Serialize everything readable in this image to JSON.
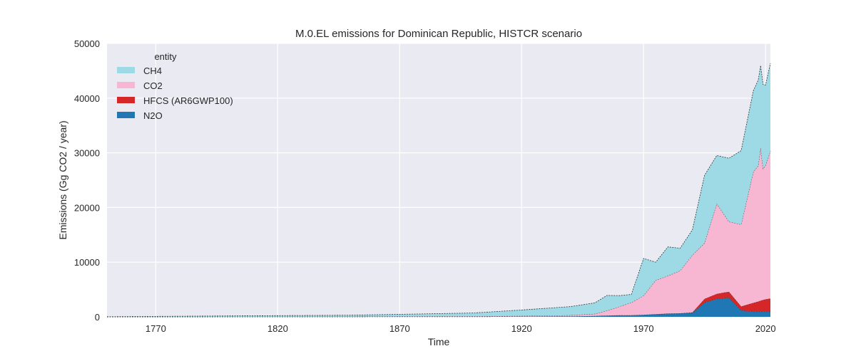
{
  "chart_data": {
    "type": "area",
    "stacked": true,
    "title": "M.0.EL emissions for Dominican Republic, HISTCR scenario",
    "xlabel": "Time",
    "ylabel": "Emissions (Gg CO2 / year)",
    "xlim": [
      1750,
      2022
    ],
    "ylim": [
      0,
      50000
    ],
    "xticks": [
      1770,
      1820,
      1870,
      1920,
      1970,
      2020
    ],
    "yticks": [
      0,
      10000,
      20000,
      30000,
      40000,
      50000
    ],
    "grid": true,
    "legend": {
      "title": "entity",
      "placement": "top-left"
    },
    "x": [
      1750,
      1800,
      1850,
      1900,
      1920,
      1940,
      1950,
      1955,
      1960,
      1965,
      1970,
      1975,
      1980,
      1985,
      1990,
      1995,
      2000,
      2005,
      2010,
      2015,
      2017,
      2018,
      2019,
      2020,
      2022
    ],
    "series": [
      {
        "name": "N2O",
        "color": "#1f77b4",
        "values": [
          0,
          10,
          20,
          40,
          50,
          80,
          150,
          220,
          280,
          300,
          380,
          500,
          600,
          650,
          700,
          2600,
          3300,
          3500,
          1200,
          950,
          950,
          950,
          950,
          950,
          950
        ]
      },
      {
        "name": "HFCS (AR6GWP100)",
        "color": "#d62728",
        "values": [
          0,
          0,
          0,
          0,
          0,
          0,
          0,
          0,
          0,
          0,
          0,
          0,
          0,
          0,
          100,
          700,
          900,
          1100,
          700,
          1600,
          1850,
          2000,
          2150,
          2250,
          2400
        ]
      },
      {
        "name": "CO2",
        "color": "#f7b6d2",
        "values": [
          0,
          10,
          30,
          60,
          100,
          200,
          400,
          900,
          1600,
          2300,
          3500,
          6200,
          6900,
          7800,
          10500,
          10200,
          16500,
          12800,
          15000,
          24000,
          24800,
          28000,
          24000,
          24500,
          27000
        ]
      },
      {
        "name": "CH4",
        "color": "#9edae5",
        "values": [
          20,
          150,
          250,
          600,
          1100,
          1600,
          2000,
          2800,
          2000,
          1500,
          6800,
          3300,
          5300,
          4100,
          4600,
          12400,
          8800,
          11600,
          13500,
          14800,
          15700,
          15000,
          15400,
          14700,
          16000
        ]
      }
    ]
  }
}
